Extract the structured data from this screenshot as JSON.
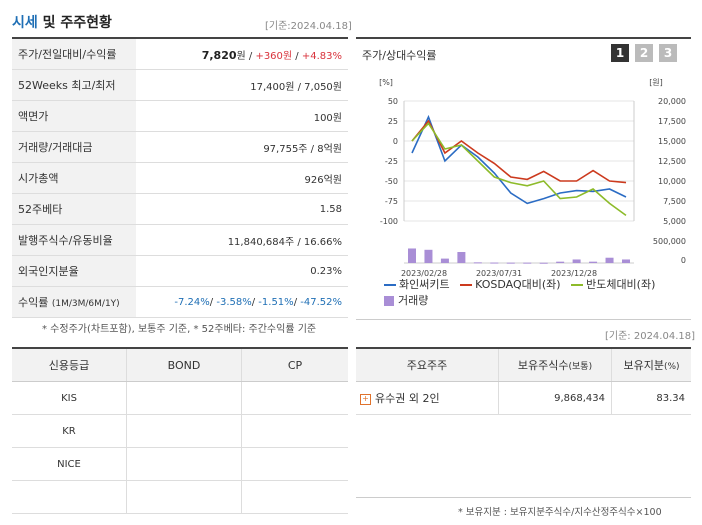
{
  "header": {
    "title_part1": "시세",
    "title_part2": "및 주주현황",
    "base_date": "[기준:2024.04.18]"
  },
  "stats": [
    {
      "label": "주가/전일대비/수익률",
      "price": "7,820",
      "price_unit": "원",
      "change": "+360원",
      "pct": "+4.83%"
    },
    {
      "label": "52Weeks 최고/최저",
      "value": "17,400원 / 7,050원"
    },
    {
      "label": "액면가",
      "value": "100원"
    },
    {
      "label": "거래량/거래대금",
      "value": "97,755주 / 8억원"
    },
    {
      "label": "시가총액",
      "value": "926억원"
    },
    {
      "label": "52주베타",
      "value": "1.58"
    },
    {
      "label": "발행주식수/유동비율",
      "value": "11,840,684주 / 16.66%"
    },
    {
      "label": "외국인지분율",
      "value": "0.23%"
    },
    {
      "label": "수익률",
      "label_small": "(1M/3M/6M/1Y)",
      "r1": "-7.24%",
      "r2": "-3.58%",
      "r3": "-1.51%",
      "r4": "-47.52%"
    }
  ],
  "stats_note": "* 수정주가(차트포함), 보통주 기준, * 52주베타: 주간수익률 기준",
  "chart": {
    "title": "주가/상대수익률",
    "pages": [
      "1",
      "2",
      "3"
    ],
    "left_unit": "[%]",
    "right_unit": "[원]",
    "legend": [
      "화인써키트",
      "KOSDAQ대비(좌)",
      "반도체대비(좌)",
      "거래량"
    ],
    "colors": {
      "stock": "#2b6cc4",
      "kosdaq": "#cc3a1e",
      "semi": "#8dbb2a",
      "volume": "#a98ed6"
    }
  },
  "chart_data": {
    "type": "line",
    "x_ticks": [
      "2023/02/28",
      "2023/07/31",
      "2023/12/28"
    ],
    "y_left_ticks": [
      "50",
      "25",
      "0",
      "-25",
      "-50",
      "-75",
      "-100"
    ],
    "y_right_ticks": [
      "20,000",
      "17,500",
      "15,000",
      "12,500",
      "10,000",
      "7,500",
      "5,000"
    ],
    "volume_ticks": [
      "500,000",
      "0"
    ],
    "y_left_range": [
      -100,
      50
    ],
    "volume_range": [
      0,
      500000
    ],
    "series": [
      {
        "name": "화인써키트",
        "values": [
          -15,
          30,
          -25,
          -5,
          -20,
          -40,
          -65,
          -78,
          -72,
          -65,
          -62,
          -63,
          -60,
          -70
        ]
      },
      {
        "name": "KOSDAQ대비(좌)",
        "values": [
          0,
          25,
          -15,
          0,
          -15,
          -28,
          -45,
          -48,
          -38,
          -50,
          -50,
          -37,
          -50,
          -52
        ]
      },
      {
        "name": "반도체대비(좌)",
        "values": [
          0,
          22,
          -10,
          -5,
          -25,
          -45,
          -52,
          -56,
          -50,
          -72,
          -70,
          -60,
          -78,
          -93
        ]
      }
    ],
    "volume": [
      330000,
      300000,
      100000,
      250000,
      15000,
      10000,
      8000,
      8000,
      6000,
      30000,
      80000,
      30000,
      120000,
      80000
    ]
  },
  "credit": {
    "headers": [
      "신용등급",
      "BOND",
      "CP"
    ],
    "rows": [
      [
        "KIS",
        "",
        ""
      ],
      [
        "KR",
        "",
        ""
      ],
      [
        "NICE",
        "",
        ""
      ],
      [
        "",
        "",
        ""
      ]
    ]
  },
  "holders": {
    "base_date": "[기준: 2024.04.18]",
    "headers": [
      "주요주주",
      "보유주식수",
      "(보통)",
      "보유지분",
      "(%)"
    ],
    "rows": [
      {
        "name": "유수권 외 2인",
        "shares": "9,868,434",
        "pct": "83.34"
      }
    ],
    "note": "* 보유지분 : 보유지분주식수/지수산정주식수×100"
  }
}
